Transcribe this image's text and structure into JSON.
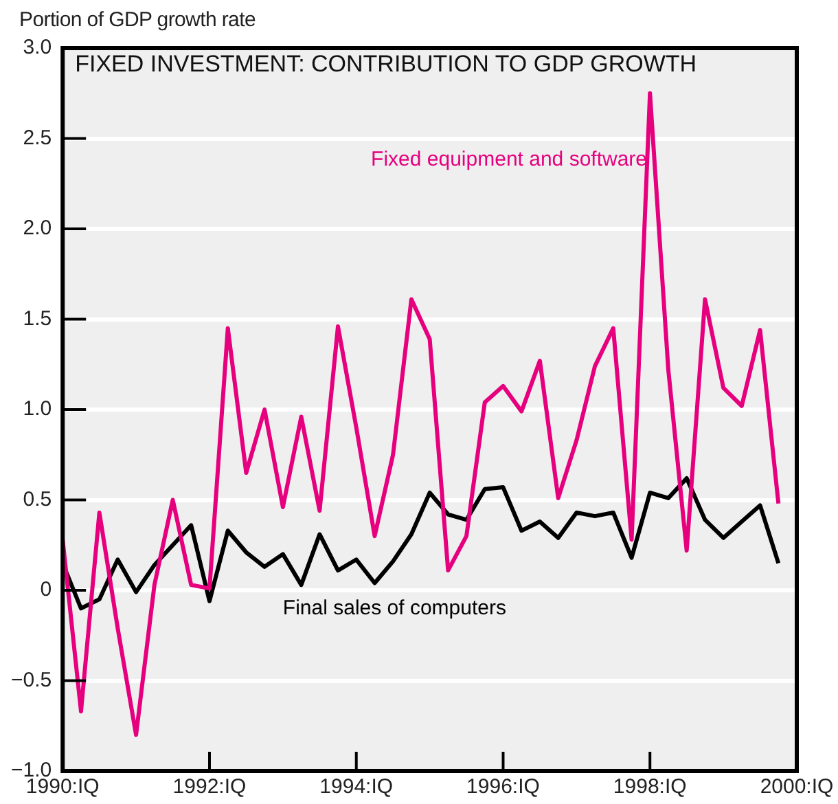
{
  "chart_data": {
    "type": "line",
    "title": "FIXED INVESTMENT: CONTRIBUTION TO GDP GROWTH",
    "ylabel": "Portion of GDP growth rate",
    "x": [
      1990,
      1990.25,
      1990.5,
      1990.75,
      1991,
      1991.25,
      1991.5,
      1991.75,
      1992,
      1992.25,
      1992.5,
      1992.75,
      1993,
      1993.25,
      1993.5,
      1993.75,
      1994,
      1994.25,
      1994.5,
      1994.75,
      1995,
      1995.25,
      1995.5,
      1995.75,
      1996,
      1996.25,
      1996.5,
      1996.75,
      1997,
      1997.25,
      1997.5,
      1997.75,
      1998,
      1998.25,
      1998.5,
      1998.75,
      1999,
      1999.25,
      1999.5,
      1999.75
    ],
    "series": [
      {
        "name": "Fixed equipment and software",
        "color": "#e6007e",
        "values": [
          0.28,
          -0.67,
          0.43,
          -0.21,
          -0.8,
          0.03,
          0.5,
          0.03,
          0.01,
          1.45,
          0.65,
          1.0,
          0.46,
          0.96,
          0.44,
          1.46,
          0.9,
          0.3,
          0.75,
          1.61,
          1.39,
          0.11,
          0.3,
          1.04,
          1.13,
          0.99,
          1.27,
          0.51,
          0.83,
          1.24,
          1.45,
          0.28,
          2.75,
          1.22,
          0.22,
          1.61,
          1.12,
          1.02,
          1.44,
          0.48
        ]
      },
      {
        "name": "Final sales of computers",
        "color": "#000000",
        "values": [
          0.15,
          -0.1,
          -0.05,
          0.17,
          -0.01,
          0.14,
          0.25,
          0.36,
          -0.06,
          0.33,
          0.21,
          0.13,
          0.2,
          0.03,
          0.31,
          0.11,
          0.17,
          0.04,
          0.16,
          0.31,
          0.54,
          0.42,
          0.39,
          0.56,
          0.57,
          0.33,
          0.38,
          0.29,
          0.43,
          0.41,
          0.43,
          0.18,
          0.54,
          0.51,
          0.62,
          0.39,
          0.29,
          0.38,
          0.47,
          0.15
        ]
      }
    ],
    "xlim": [
      1990,
      2000
    ],
    "xticks": [
      {
        "value": 1990,
        "label": "1990:IQ"
      },
      {
        "value": 1992,
        "label": "1992:IQ"
      },
      {
        "value": 1994,
        "label": "1994:IQ"
      },
      {
        "value": 1996,
        "label": "1996:IQ"
      },
      {
        "value": 1998,
        "label": "1998:IQ"
      },
      {
        "value": 2000,
        "label": "2000:IQ"
      }
    ],
    "ylim": [
      -1,
      3
    ],
    "yticks": [
      {
        "value": -1,
        "label": "−1.0"
      },
      {
        "value": -0.5,
        "label": "−0.5"
      },
      0,
      {
        "value": 0.5,
        "label": "0.5"
      },
      {
        "value": 1,
        "label": "1.0"
      },
      {
        "value": 1.5,
        "label": "1.5"
      },
      {
        "value": 2,
        "label": "2.0"
      },
      {
        "value": 2.5,
        "label": "2.5"
      },
      {
        "value": 3,
        "label": "3.0"
      }
    ],
    "grid": "y",
    "legend": false,
    "marker": "none",
    "line_style": "solid"
  }
}
